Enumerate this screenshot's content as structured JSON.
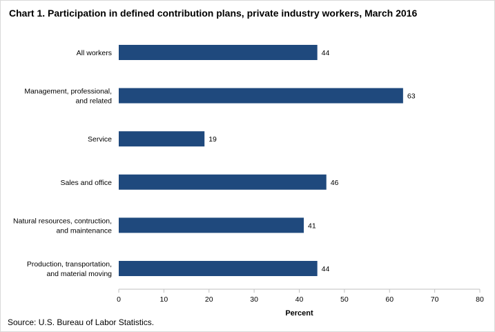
{
  "chart_data": {
    "type": "bar",
    "orientation": "horizontal",
    "title": "Chart 1. Participation in defined contribution plans, private industry workers, March 2016",
    "categories": [
      [
        "All workers"
      ],
      [
        "Management, professional,",
        "and related"
      ],
      [
        "Service"
      ],
      [
        "Sales and office"
      ],
      [
        "Natural resources, contruction,",
        "and maintenance"
      ],
      [
        "Production, transportation,",
        "and material moving"
      ]
    ],
    "values": [
      44,
      63,
      19,
      46,
      41,
      44
    ],
    "xlabel": "Percent",
    "ylabel": "",
    "xlim": [
      0,
      80
    ],
    "ticks": [
      0,
      10,
      20,
      30,
      40,
      50,
      60,
      70,
      80
    ],
    "bar_color": "#1f497d",
    "grid": false,
    "legend": "none"
  },
  "source": "Source: U.S. Bureau of Labor Statistics."
}
